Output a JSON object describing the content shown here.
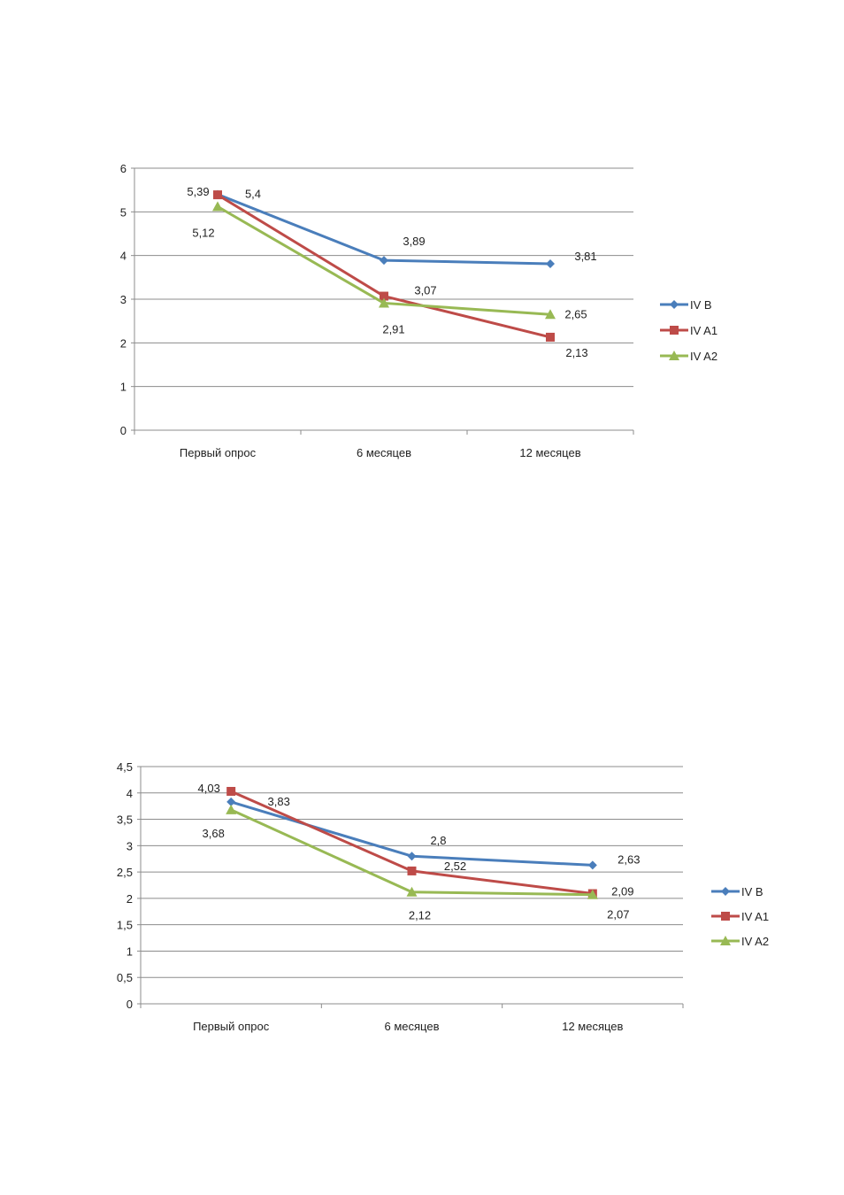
{
  "chart_data": [
    {
      "type": "line",
      "categories": [
        "Первый опрос",
        "6 месяцев",
        "12 месяцев"
      ],
      "ylim": [
        0,
        6
      ],
      "yticks": [
        "0",
        "1",
        "2",
        "3",
        "4",
        "5",
        "6"
      ],
      "grid": true,
      "legend": "right",
      "series": [
        {
          "name": "IV B",
          "values": [
            5.4,
            3.89,
            3.81
          ],
          "labels": [
            "5,4",
            "3,89",
            "3,81"
          ],
          "color": "#4a7ebb",
          "marker": "diamond"
        },
        {
          "name": "IV A1",
          "values": [
            5.39,
            3.07,
            2.13
          ],
          "labels": [
            "5,39",
            "3,07",
            "2,13"
          ],
          "color": "#be4b48",
          "marker": "square"
        },
        {
          "name": "IV A2",
          "values": [
            5.12,
            2.91,
            2.65
          ],
          "labels": [
            "5,12",
            "2,91",
            "2,65"
          ],
          "color": "#98b954",
          "marker": "triangle"
        }
      ]
    },
    {
      "type": "line",
      "categories": [
        "Первый опрос",
        "6 месяцев",
        "12 месяцев"
      ],
      "ylim": [
        0,
        4.5
      ],
      "yticks": [
        "0",
        "0,5",
        "1",
        "1,5",
        "2",
        "2,5",
        "3",
        "3,5",
        "4",
        "4,5"
      ],
      "grid": true,
      "legend": "right",
      "series": [
        {
          "name": "IV B",
          "values": [
            3.83,
            2.8,
            2.63
          ],
          "labels": [
            "3,83",
            "2,8",
            "2,63"
          ],
          "color": "#4a7ebb",
          "marker": "diamond"
        },
        {
          "name": "IV A1",
          "values": [
            4.03,
            2.52,
            2.09
          ],
          "labels": [
            "4,03",
            "2,52",
            "2,09"
          ],
          "color": "#be4b48",
          "marker": "square"
        },
        {
          "name": "IV A2",
          "values": [
            3.68,
            2.12,
            2.07
          ],
          "labels": [
            "3,68",
            "2,12",
            "2,07"
          ],
          "color": "#98b954",
          "marker": "triangle"
        }
      ]
    }
  ]
}
